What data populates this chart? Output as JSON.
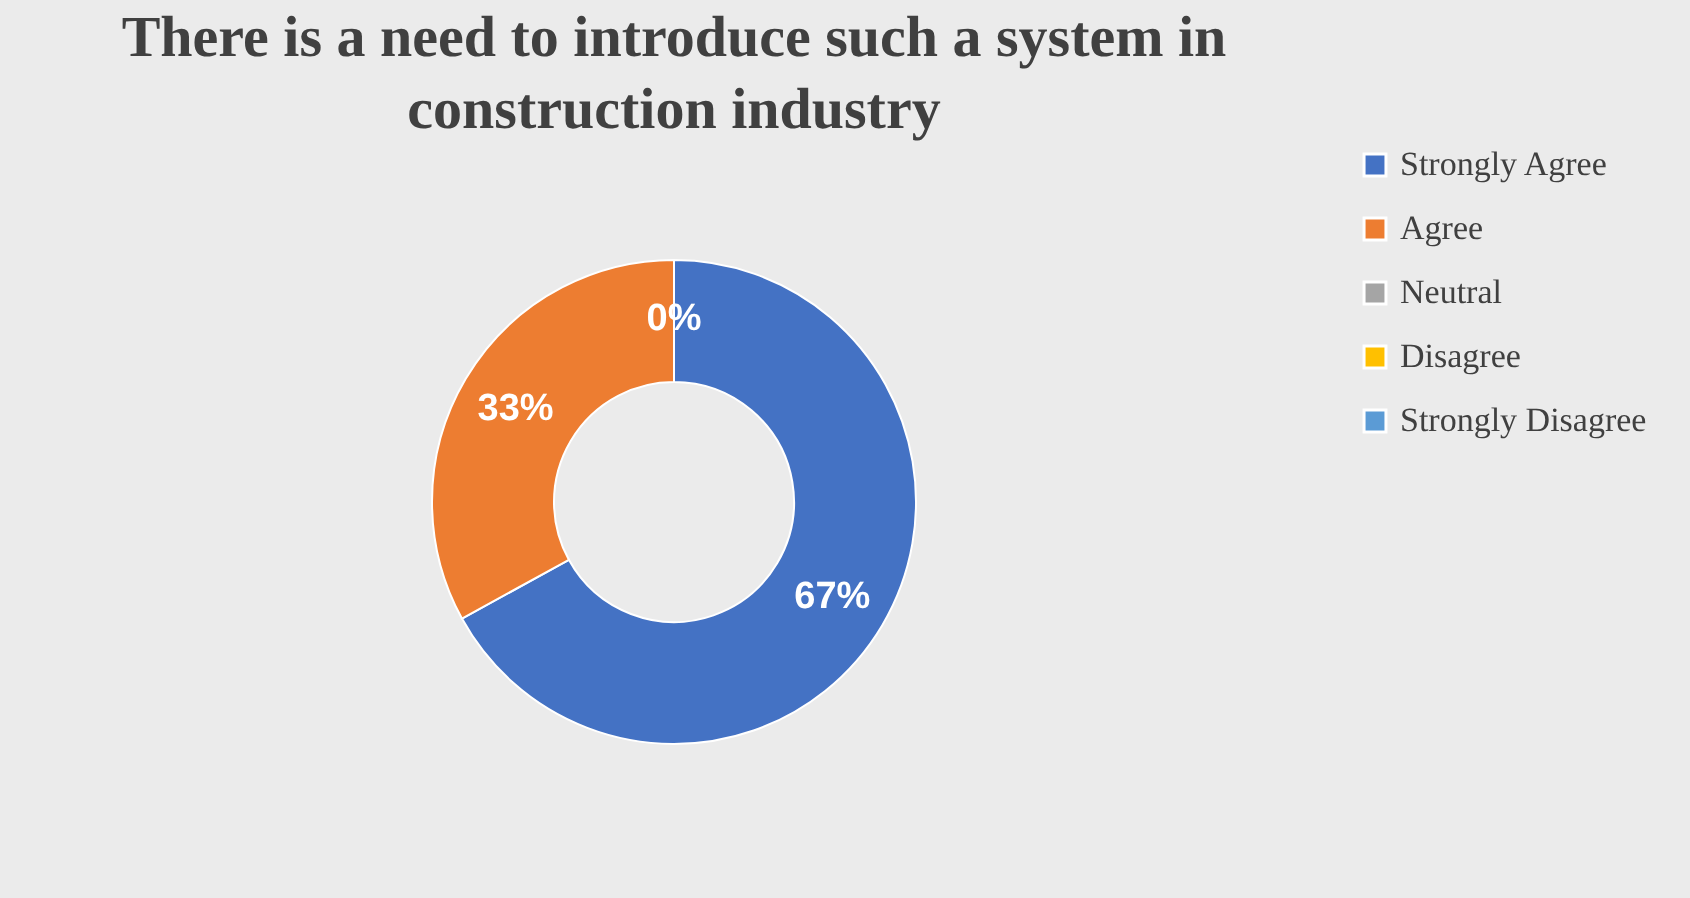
{
  "chart_data": {
    "type": "donut",
    "title": "There is a need to introduce such a system in construction industry",
    "categories": [
      "Strongly Agree",
      "Agree",
      "Neutral",
      "Disagree",
      "Strongly Disagree"
    ],
    "values": [
      67,
      33,
      0,
      0,
      0
    ],
    "colors": [
      "#4472c4",
      "#ed7d31",
      "#a5a5a5",
      "#ffc000",
      "#5b9bd5"
    ],
    "value_labels": [
      "67%",
      "33%",
      "0%",
      null,
      null
    ],
    "legend": "right"
  }
}
